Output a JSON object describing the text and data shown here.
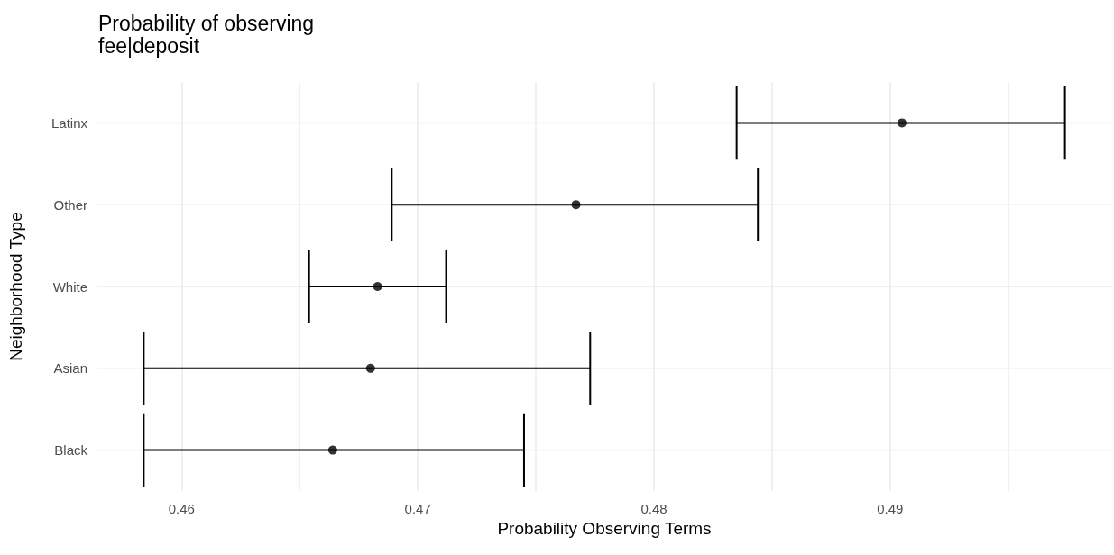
{
  "chart_data": {
    "type": "scatter",
    "title": "Probability of observing fee|deposit",
    "xlabel": "Probability Observing Terms",
    "ylabel": "Neighborhood Type",
    "orientation": "horizontal",
    "categories": [
      "Latinx",
      "Other",
      "White",
      "Asian",
      "Black"
    ],
    "series": [
      {
        "color": "#000000",
        "values": [
          0.4905,
          0.4767,
          0.4683,
          0.468,
          0.4664
        ],
        "errors": [
          [
            0.4835,
            0.4974
          ],
          [
            0.4689,
            0.4844
          ],
          [
            0.4654,
            0.4712
          ],
          [
            0.4584,
            0.4773
          ],
          [
            0.4584,
            0.4745
          ]
        ]
      }
    ],
    "xlim": [
      0.4564,
      0.4994
    ],
    "xticks": [
      0.46,
      {
        "value": 0.465,
        "label": null
      },
      0.47,
      {
        "value": 0.475,
        "label": null
      },
      0.48,
      {
        "value": 0.485,
        "label": null
      },
      0.49,
      {
        "value": 0.495,
        "label": null
      }
    ],
    "grid": true,
    "marker": "circle"
  }
}
